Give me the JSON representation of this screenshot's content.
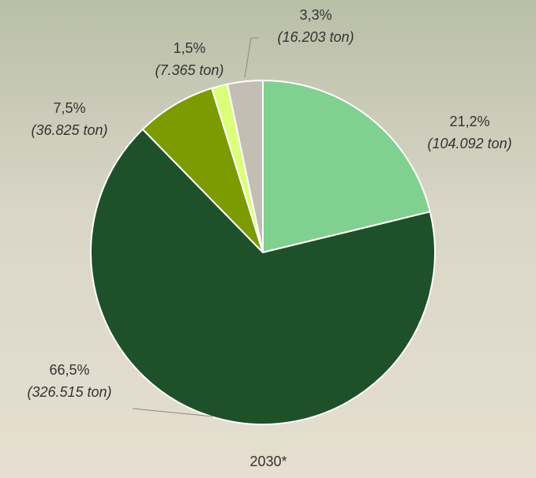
{
  "chart_data": {
    "type": "pie",
    "title": "2030*",
    "values": [
      21.2,
      66.5,
      7.5,
      1.5,
      3.3
    ],
    "value_labels": [
      "21,2%",
      "66,5%",
      "7,5%",
      "1,5%",
      "3,3%"
    ],
    "ton_labels": [
      "(104.092 ton)",
      "(326.515 ton)",
      "(36.825 ton)",
      "(7.365 ton)",
      "(16.203 ton)"
    ],
    "colors": [
      "#80d08f",
      "#1e5129",
      "#7b9b00",
      "#dbff7b",
      "#c2beb4"
    ]
  }
}
